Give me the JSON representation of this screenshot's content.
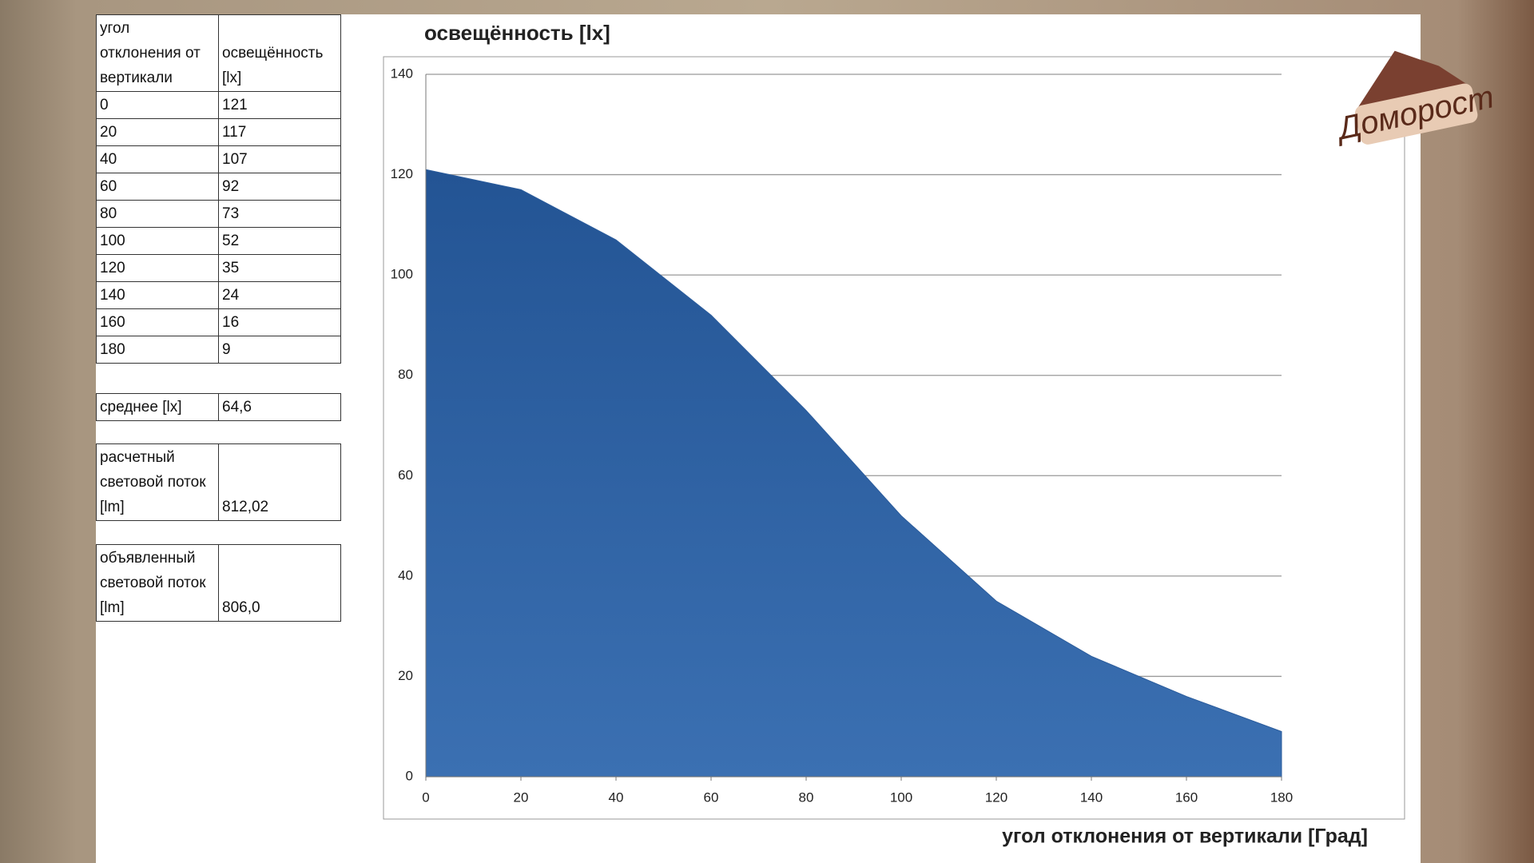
{
  "table": {
    "header": [
      "угол отклонения от вертикали",
      "освещённость [lx]"
    ],
    "rows": [
      [
        "0",
        "121"
      ],
      [
        "20",
        "117"
      ],
      [
        "40",
        "107"
      ],
      [
        "60",
        "92"
      ],
      [
        "80",
        "73"
      ],
      [
        "100",
        "52"
      ],
      [
        "120",
        "35"
      ],
      [
        "140",
        "24"
      ],
      [
        "160",
        "16"
      ],
      [
        "180",
        "9"
      ]
    ]
  },
  "summary": [
    {
      "label": "среднее  [lx]",
      "value": "64,6"
    },
    {
      "label": "расчетный световой поток  [lm]",
      "value": "812,02"
    },
    {
      "label": "объявленный световой поток  [lm]",
      "value": "806,0"
    }
  ],
  "logo": "Доморост",
  "chart_data": {
    "type": "area",
    "title": "освещённость [lx]",
    "x_label": "угол отклонения от вертикали  [Град]",
    "x": [
      0,
      20,
      40,
      60,
      80,
      100,
      120,
      140,
      160,
      180
    ],
    "series": [
      {
        "color": "#2b5c9c",
        "values": [
          121,
          117,
          107,
          92,
          73,
          52,
          35,
          24,
          16,
          9
        ]
      }
    ],
    "xlim": [
      0,
      180
    ],
    "xticks": [
      0,
      20,
      40,
      60,
      80,
      100,
      120,
      140,
      160,
      180
    ],
    "ylim": [
      0,
      140
    ],
    "yticks": [
      0,
      20,
      40,
      60,
      80,
      100,
      120,
      140
    ],
    "grid": true
  }
}
